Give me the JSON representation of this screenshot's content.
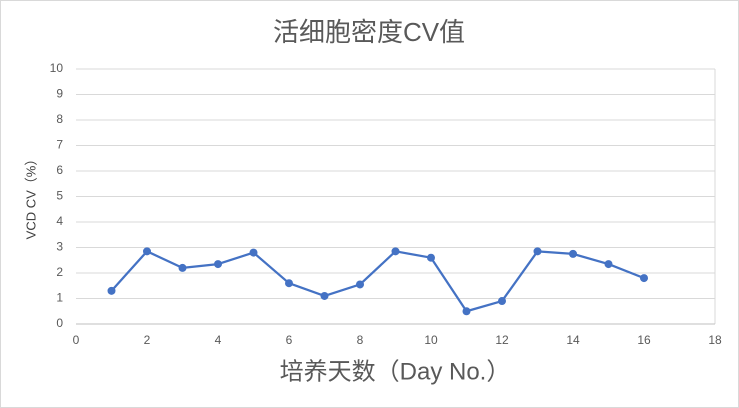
{
  "chart_data": {
    "type": "line",
    "title": "活细胞密度CV值",
    "x_label": "培养天数（Day No.）",
    "y_label": "VCD CV（%）",
    "x": [
      1,
      2,
      3,
      4,
      5,
      6,
      7,
      8,
      9,
      10,
      11,
      12,
      13,
      14,
      15,
      16
    ],
    "series": [
      {
        "name": "VCD CV",
        "color": "#4472c4",
        "values": [
          1.3,
          2.85,
          2.2,
          2.35,
          2.8,
          1.6,
          1.1,
          1.55,
          2.85,
          2.6,
          0.5,
          0.9,
          2.85,
          2.75,
          2.35,
          1.8
        ]
      }
    ],
    "xlim": [
      0,
      18
    ],
    "xticks": [
      0,
      2,
      4,
      6,
      8,
      10,
      12,
      14,
      16,
      18
    ],
    "ylim": [
      0,
      10
    ],
    "yticks": [
      0,
      1,
      2,
      3,
      4,
      5,
      6,
      7,
      8,
      9,
      10
    ],
    "grid": true
  }
}
